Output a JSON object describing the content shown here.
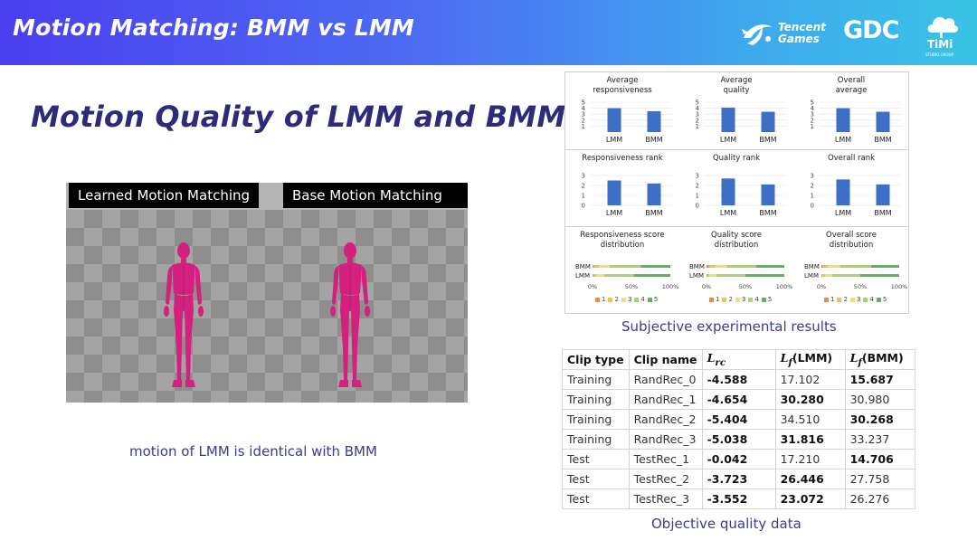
{
  "header": {
    "title": "Motion Matching: BMM vs LMM",
    "logos": {
      "tencent_line1": "Tencent",
      "tencent_line2": "Games",
      "gdc": "GDC",
      "timi": "TiMi",
      "timi_sub": "STUDIO GROUP"
    },
    "colors": {
      "gradient_start": "#4a3ff0",
      "gradient_end": "#39c4e6"
    }
  },
  "slide_title": "Motion Quality of LMM and BMM",
  "video": {
    "left_label": "Learned Motion Matching",
    "right_label": "Base Motion Matching",
    "figure_color": "#d4207e"
  },
  "motion_caption": "motion of LMM is identical with BMM",
  "subjective": {
    "caption": "Subjective experimental results",
    "charts": [
      {
        "title_lines": [
          "Average",
          "responsiveness"
        ],
        "categories": [
          "LMM",
          "BMM"
        ],
        "values": [
          4.0,
          3.5
        ],
        "yticks": [
          "5",
          "4",
          "3",
          "2",
          "1"
        ],
        "ymax": 5
      },
      {
        "title_lines": [
          "Average",
          "quality"
        ],
        "categories": [
          "LMM",
          "BMM"
        ],
        "values": [
          4.1,
          3.4
        ],
        "yticks": [
          "5",
          "4",
          "3",
          "2",
          "1"
        ],
        "ymax": 5
      },
      {
        "title_lines": [
          "Overall",
          "average"
        ],
        "categories": [
          "LMM",
          "BMM"
        ],
        "values": [
          4.0,
          3.4
        ],
        "yticks": [
          "5",
          "4",
          "3",
          "2",
          "1"
        ],
        "ymax": 5
      },
      {
        "title_lines": [
          "Responsiveness rank"
        ],
        "categories": [
          "LMM",
          "BMM"
        ],
        "values": [
          2.5,
          2.2
        ],
        "yticks": [
          "3",
          "2",
          "1",
          "0"
        ],
        "ymax": 3
      },
      {
        "title_lines": [
          "Quality rank"
        ],
        "categories": [
          "LMM",
          "BMM"
        ],
        "values": [
          2.7,
          2.1
        ],
        "yticks": [
          "3",
          "2",
          "1",
          "0"
        ],
        "ymax": 3
      },
      {
        "title_lines": [
          "Overall rank"
        ],
        "categories": [
          "LMM",
          "BMM"
        ],
        "values": [
          2.6,
          2.1
        ],
        "yticks": [
          "3",
          "2",
          "1",
          "0"
        ],
        "ymax": 3
      }
    ],
    "distributions": [
      {
        "title_lines": [
          "Responsiveness score",
          "distribution"
        ]
      },
      {
        "title_lines": [
          "Quality score",
          "distribution"
        ]
      },
      {
        "title_lines": [
          "Overall score",
          "distribution"
        ]
      }
    ],
    "dist_rows": [
      "BMM",
      "LMM"
    ],
    "dist_axis": [
      "0%",
      "50%",
      "100%"
    ],
    "dist_legend": [
      "1",
      "2",
      "3",
      "4",
      "5"
    ],
    "dist_colors": [
      "#f08a3c",
      "#f2c14e",
      "#f5e06a",
      "#a9d36b",
      "#5bb55f"
    ],
    "bar_color": "#3e6fc7"
  },
  "objective": {
    "caption": "Objective quality data",
    "headers": [
      "Clip type",
      "Clip name",
      "L",
      "L",
      "L"
    ],
    "header_math": [
      {
        "base": "L",
        "sub": "rc",
        "suffix": ""
      },
      {
        "base": "L",
        "sub": "f",
        "suffix": "(LMM)"
      },
      {
        "base": "L",
        "sub": "f",
        "suffix": "(BMM)"
      }
    ],
    "rows": [
      {
        "type": "Training",
        "name": "RandRec_0",
        "lrc": "-4.588",
        "lmm": "17.102",
        "bmm": "15.687",
        "bold": [
          2,
          4
        ]
      },
      {
        "type": "Training",
        "name": "RandRec_1",
        "lrc": "-4.654",
        "lmm": "30.280",
        "bmm": "30.980",
        "bold": [
          2,
          3
        ]
      },
      {
        "type": "Training",
        "name": "RandRec_2",
        "lrc": "-5.404",
        "lmm": "34.510",
        "bmm": "30.268",
        "bold": [
          2,
          4
        ]
      },
      {
        "type": "Training",
        "name": "RandRec_3",
        "lrc": "-5.038",
        "lmm": "31.816",
        "bmm": "33.237",
        "bold": [
          2,
          3
        ]
      },
      {
        "type": "Test",
        "name": "TestRec_1",
        "lrc": "-0.042",
        "lmm": "17.210",
        "bmm": "14.706",
        "bold": [
          2,
          4
        ]
      },
      {
        "type": "Test",
        "name": "TestRec_2",
        "lrc": "-3.723",
        "lmm": "26.446",
        "bmm": "27.758",
        "bold": [
          2,
          3
        ]
      },
      {
        "type": "Test",
        "name": "TestRec_3",
        "lrc": "-3.552",
        "lmm": "23.072",
        "bmm": "26.276",
        "bold": [
          2,
          3
        ]
      }
    ]
  }
}
